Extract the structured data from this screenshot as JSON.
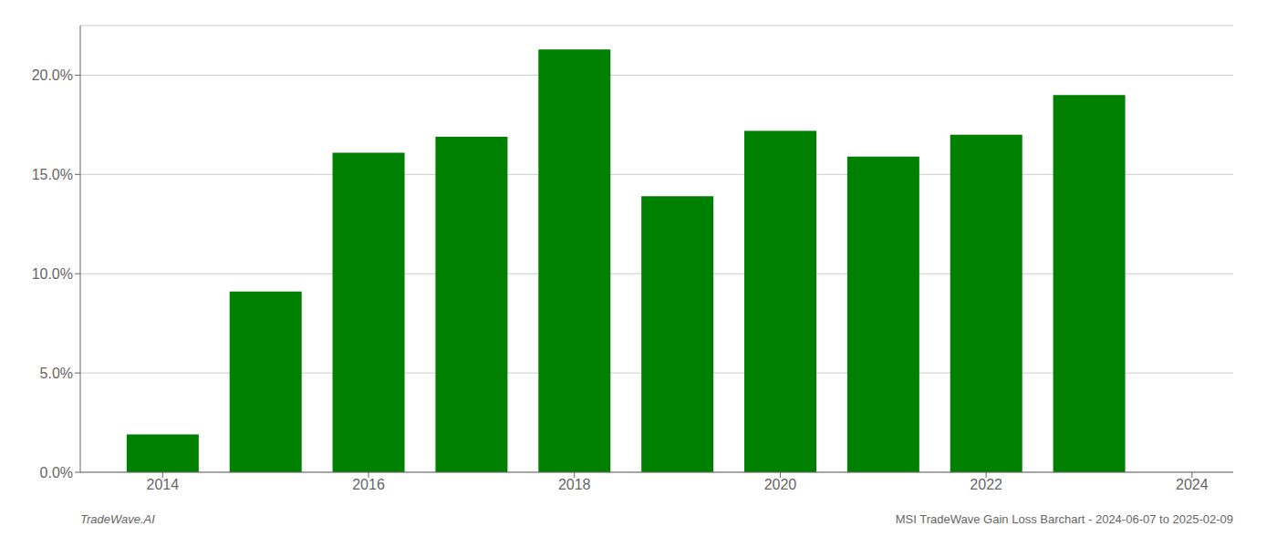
{
  "chart_data": {
    "type": "bar",
    "x": [
      2014,
      2015,
      2016,
      2017,
      2018,
      2019,
      2020,
      2021,
      2022,
      2023
    ],
    "values": [
      0.019,
      0.091,
      0.161,
      0.169,
      0.213,
      0.139,
      0.172,
      0.159,
      0.17,
      0.19
    ],
    "color": "#008000",
    "xlim": [
      2013.2,
      2024.4
    ],
    "xticks": [
      2014,
      2016,
      2018,
      2020,
      2022,
      2024
    ],
    "ylim": [
      0,
      0.225
    ],
    "yticks": [
      {
        "value": 0.0,
        "label": "0.0%"
      },
      {
        "value": 0.05,
        "label": "5.0%"
      },
      {
        "value": 0.1,
        "label": "10.0%"
      },
      {
        "value": 0.15,
        "label": "15.0%"
      },
      {
        "value": 0.2,
        "label": "20.0%"
      }
    ],
    "grid": true,
    "annotations": [
      "TradeWave.AI",
      "MSI TradeWave Gain Loss Barchart - 2024-06-07 to 2025-02-09"
    ]
  }
}
